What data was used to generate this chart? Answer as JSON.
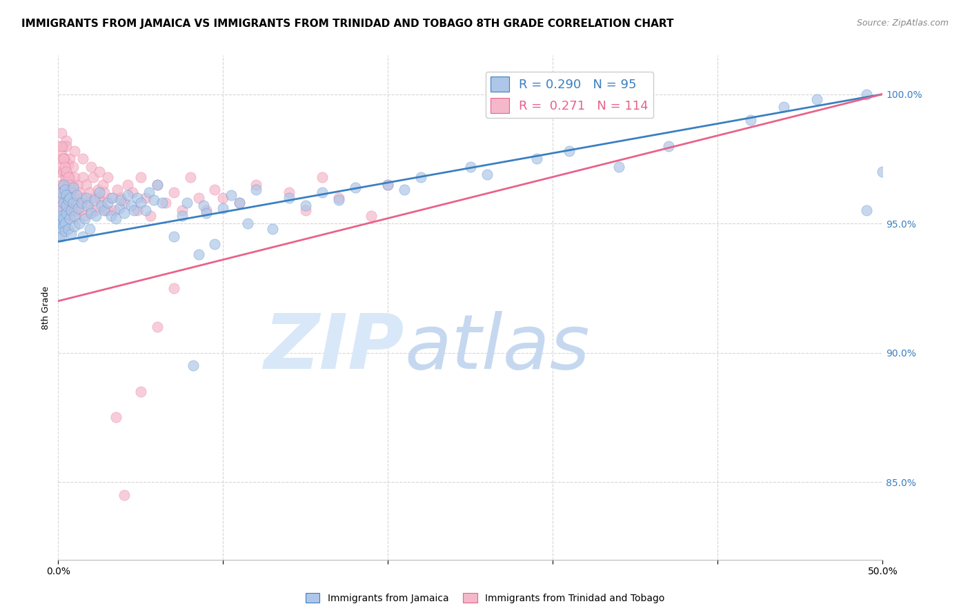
{
  "title": "IMMIGRANTS FROM JAMAICA VS IMMIGRANTS FROM TRINIDAD AND TOBAGO 8TH GRADE CORRELATION CHART",
  "source": "Source: ZipAtlas.com",
  "ylabel": "8th Grade",
  "legend_jamaica": "Immigrants from Jamaica",
  "legend_tt": "Immigrants from Trinidad and Tobago",
  "R_jamaica": 0.29,
  "N_jamaica": 95,
  "R_tt": 0.271,
  "N_tt": 114,
  "color_jamaica": "#aec6e8",
  "color_tt": "#f5b8cb",
  "line_color_jamaica": "#3a7fc1",
  "line_color_tt": "#e8628a",
  "watermark_color_zip": "#d8e8f8",
  "watermark_color_atlas": "#c5d8f0",
  "background_color": "#ffffff",
  "grid_color": "#cccccc",
  "xlim": [
    0.0,
    0.5
  ],
  "ylim": [
    82.0,
    101.5
  ],
  "yticks": [
    85.0,
    90.0,
    95.0,
    100.0
  ],
  "jamaica_x": [
    0.0008,
    0.001,
    0.0012,
    0.0015,
    0.001,
    0.0018,
    0.002,
    0.002,
    0.002,
    0.003,
    0.003,
    0.003,
    0.003,
    0.004,
    0.004,
    0.004,
    0.005,
    0.005,
    0.005,
    0.006,
    0.006,
    0.007,
    0.007,
    0.008,
    0.008,
    0.009,
    0.009,
    0.01,
    0.01,
    0.011,
    0.012,
    0.013,
    0.014,
    0.015,
    0.016,
    0.017,
    0.018,
    0.019,
    0.02,
    0.022,
    0.023,
    0.025,
    0.026,
    0.028,
    0.03,
    0.032,
    0.033,
    0.035,
    0.037,
    0.038,
    0.04,
    0.042,
    0.044,
    0.046,
    0.048,
    0.05,
    0.053,
    0.055,
    0.058,
    0.06,
    0.063,
    0.07,
    0.075,
    0.078,
    0.082,
    0.085,
    0.088,
    0.09,
    0.095,
    0.1,
    0.105,
    0.11,
    0.115,
    0.12,
    0.13,
    0.14,
    0.15,
    0.16,
    0.17,
    0.18,
    0.2,
    0.21,
    0.22,
    0.25,
    0.26,
    0.29,
    0.31,
    0.34,
    0.37,
    0.42,
    0.44,
    0.46,
    0.49,
    0.49,
    0.5
  ],
  "jamaica_y": [
    94.5,
    95.2,
    94.8,
    95.5,
    96.0,
    95.0,
    95.3,
    94.5,
    96.2,
    95.8,
    95.2,
    94.9,
    96.5,
    95.0,
    94.7,
    96.3,
    95.4,
    96.1,
    95.7,
    94.8,
    95.9,
    95.2,
    96.0,
    95.5,
    94.6,
    95.8,
    96.4,
    94.9,
    95.3,
    96.1,
    95.6,
    95.0,
    95.8,
    94.5,
    95.2,
    96.0,
    95.7,
    94.8,
    95.4,
    95.9,
    95.3,
    96.2,
    95.7,
    95.5,
    95.8,
    95.3,
    96.0,
    95.2,
    95.6,
    95.9,
    95.4,
    96.1,
    95.7,
    95.5,
    96.0,
    95.8,
    95.5,
    96.2,
    95.9,
    96.5,
    95.8,
    94.5,
    95.3,
    95.8,
    89.5,
    93.8,
    95.7,
    95.4,
    94.2,
    95.6,
    96.1,
    95.8,
    95.0,
    96.3,
    94.8,
    96.0,
    95.7,
    96.2,
    95.9,
    96.4,
    96.5,
    96.3,
    96.8,
    97.2,
    96.9,
    97.5,
    97.8,
    97.2,
    98.0,
    99.0,
    99.5,
    99.8,
    100.0,
    95.5,
    97.0
  ],
  "tt_x": [
    0.0005,
    0.001,
    0.001,
    0.001,
    0.001,
    0.001,
    0.002,
    0.002,
    0.002,
    0.002,
    0.002,
    0.002,
    0.003,
    0.003,
    0.003,
    0.003,
    0.003,
    0.003,
    0.004,
    0.004,
    0.004,
    0.004,
    0.004,
    0.005,
    0.005,
    0.005,
    0.005,
    0.005,
    0.006,
    0.006,
    0.006,
    0.006,
    0.007,
    0.007,
    0.007,
    0.008,
    0.008,
    0.009,
    0.009,
    0.009,
    0.01,
    0.01,
    0.011,
    0.011,
    0.012,
    0.012,
    0.013,
    0.014,
    0.015,
    0.015,
    0.016,
    0.017,
    0.018,
    0.019,
    0.02,
    0.021,
    0.022,
    0.023,
    0.024,
    0.025,
    0.026,
    0.027,
    0.028,
    0.029,
    0.03,
    0.032,
    0.034,
    0.036,
    0.038,
    0.04,
    0.042,
    0.045,
    0.048,
    0.05,
    0.053,
    0.056,
    0.06,
    0.065,
    0.07,
    0.075,
    0.08,
    0.085,
    0.09,
    0.095,
    0.1,
    0.11,
    0.12,
    0.14,
    0.15,
    0.16,
    0.17,
    0.19,
    0.2,
    0.003,
    0.005,
    0.01,
    0.015,
    0.02,
    0.025,
    0.03,
    0.035,
    0.04,
    0.05,
    0.06,
    0.07,
    0.002,
    0.003,
    0.004,
    0.005,
    0.006,
    0.007,
    0.008,
    0.009,
    0.01
  ],
  "tt_y": [
    96.0,
    95.5,
    96.2,
    97.0,
    97.5,
    98.0,
    95.8,
    96.5,
    97.2,
    96.0,
    97.8,
    98.5,
    96.3,
    95.0,
    97.0,
    96.5,
    95.5,
    98.0,
    96.8,
    95.3,
    96.0,
    97.5,
    95.7,
    96.2,
    95.5,
    96.8,
    97.0,
    98.2,
    95.8,
    96.5,
    97.3,
    96.0,
    95.3,
    96.8,
    97.5,
    95.5,
    96.3,
    95.8,
    96.5,
    97.2,
    95.2,
    96.8,
    96.0,
    95.5,
    96.5,
    95.8,
    96.2,
    95.5,
    96.8,
    96.0,
    95.3,
    96.5,
    95.8,
    96.2,
    95.5,
    96.8,
    96.0,
    95.5,
    96.3,
    96.0,
    95.8,
    96.5,
    96.2,
    95.5,
    96.8,
    96.0,
    95.5,
    96.3,
    96.0,
    95.8,
    96.5,
    96.2,
    95.5,
    96.8,
    96.0,
    95.3,
    96.5,
    95.8,
    96.2,
    95.5,
    96.8,
    96.0,
    95.5,
    96.3,
    96.0,
    95.8,
    96.5,
    96.2,
    95.5,
    96.8,
    96.0,
    95.3,
    96.5,
    97.5,
    98.0,
    97.8,
    97.5,
    97.2,
    97.0,
    95.5,
    87.5,
    84.5,
    88.5,
    91.0,
    92.5,
    98.0,
    97.5,
    97.2,
    97.0,
    96.8,
    96.5,
    96.2,
    95.8,
    95.5
  ]
}
